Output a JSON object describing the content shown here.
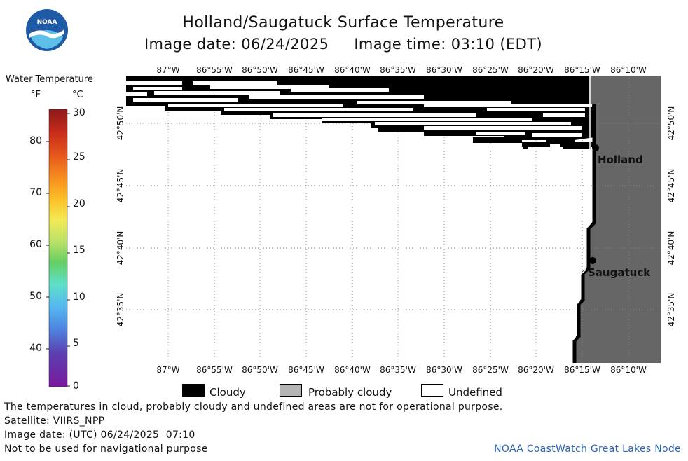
{
  "header": {
    "title": "Holland/Saugatuck Surface Temperature",
    "image_date_label": "Image date: 06/24/2025",
    "image_time_label": "Image time: 03:10 (EDT)"
  },
  "logo": {
    "text": "NOAA",
    "colors": {
      "outer": "#1f5aa6",
      "inner": "#5ec0e8",
      "bird": "#ffffff"
    }
  },
  "scale": {
    "title": "Water Temperature",
    "unit_f": "°F",
    "unit_c": "°C",
    "f_ticks": [
      "80",
      "70",
      "60",
      "50",
      "40"
    ],
    "c_ticks": [
      "30",
      "25",
      "20",
      "15",
      "10",
      "5",
      "0"
    ],
    "colors_top_to_bottom": [
      "#8b1a1a",
      "#d73027",
      "#f46d43",
      "#fdae61",
      "#fee08b",
      "#d9ef8b",
      "#66bd63",
      "#5ee0c8",
      "#57b8f0",
      "#4575d4",
      "#5b3fb0",
      "#7b1a9c"
    ]
  },
  "map": {
    "lon_labels": [
      "87°W",
      "86°55'W",
      "86°50'W",
      "86°45'W",
      "86°40'W",
      "86°35'W",
      "86°30'W",
      "86°25'W",
      "86°20'W",
      "86°15'W",
      "86°10'W"
    ],
    "lat_labels": [
      "42°50'N",
      "42°45'N",
      "42°40'N",
      "42°35'N"
    ],
    "cities": [
      {
        "name": "Holland"
      },
      {
        "name": "Saugatuck"
      }
    ],
    "colors": {
      "land": "#666666",
      "cloud": "#000000",
      "probably_cloudy": "#b4b4b4",
      "undefined": "#ffffff",
      "grid": "#888888"
    }
  },
  "legend": {
    "items": [
      {
        "label": "Cloudy",
        "color": "#000000"
      },
      {
        "label": "Probably cloudy",
        "color": "#b4b4b4"
      },
      {
        "label": "Undefined",
        "color": "#ffffff"
      }
    ]
  },
  "footer": {
    "warning": "The temperatures in cloud, probably cloudy and undefined areas are not for operational purpose.",
    "satellite": "Satellite: VIIRS_NPP",
    "utc_date": "Image date: (UTC) 06/24/2025  07:10",
    "nav_warning": "Not to be used for navigational purpose",
    "credit": "NOAA CoastWatch Great Lakes Node"
  }
}
